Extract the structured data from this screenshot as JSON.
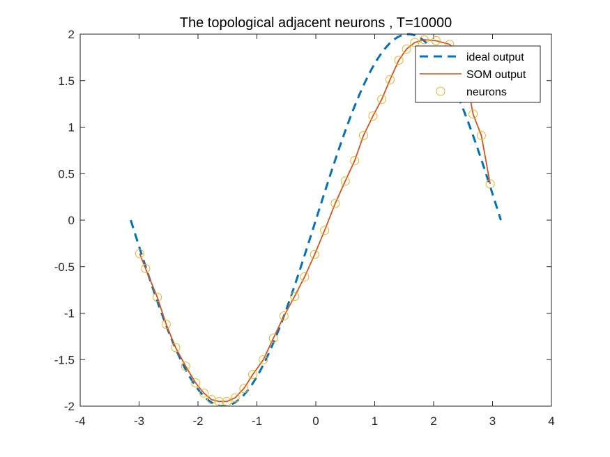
{
  "chart_data": {
    "type": "line",
    "title": "The topological adjacent neurons , T=10000",
    "xlabel": "",
    "ylabel": "",
    "xlim": [
      -4,
      4
    ],
    "ylim": [
      -2,
      2
    ],
    "xticks": [
      -4,
      -3,
      -2,
      -1,
      0,
      1,
      2,
      3,
      4
    ],
    "xtick_labels": [
      "-4",
      "-3",
      "-2",
      "-1",
      "0",
      "1",
      "2",
      "3",
      "4"
    ],
    "yticks": [
      -2,
      -1.5,
      -1,
      -0.5,
      0,
      0.5,
      1,
      1.5,
      2
    ],
    "ytick_labels": [
      "-2",
      "-1.5",
      "-1",
      "-0.5",
      "0",
      "0.5",
      "1",
      "1.5",
      "2"
    ],
    "grid": false,
    "legend_position": "top-right",
    "colors": {
      "ideal": "#0072BD",
      "som": "#D95319",
      "neurons": "#EDB120",
      "axis": "#262626"
    },
    "series": [
      {
        "name": "ideal output",
        "style": "dashed",
        "function": "2*sin(x)",
        "x_range": [
          -3.1416,
          3.1416
        ]
      },
      {
        "name": "SOM output",
        "style": "solid",
        "x": [
          -2.99,
          -2.89,
          -2.69,
          -2.54,
          -2.38,
          -2.21,
          -2.04,
          -1.9,
          -1.77,
          -1.64,
          -1.51,
          -1.37,
          -1.22,
          -1.07,
          -0.89,
          -0.72,
          -0.54,
          -0.36,
          -0.19,
          -0.02,
          0.15,
          0.33,
          0.5,
          0.66,
          0.81,
          0.97,
          1.12,
          1.26,
          1.41,
          1.54,
          1.68,
          1.84,
          2.04,
          2.27,
          2.48,
          2.67,
          2.81,
          2.96
        ],
        "y": [
          -0.36,
          -0.52,
          -0.83,
          -1.12,
          -1.37,
          -1.57,
          -1.75,
          -1.86,
          -1.93,
          -1.95,
          -1.95,
          -1.91,
          -1.81,
          -1.66,
          -1.5,
          -1.27,
          -1.03,
          -0.82,
          -0.61,
          -0.37,
          -0.11,
          0.18,
          0.42,
          0.64,
          0.91,
          1.12,
          1.3,
          1.51,
          1.72,
          1.84,
          1.91,
          1.94,
          1.93,
          1.89,
          1.78,
          1.14,
          0.91,
          0.39
        ]
      },
      {
        "name": "neurons",
        "style": "markers",
        "x": [
          -2.99,
          -2.89,
          -2.69,
          -2.54,
          -2.38,
          -2.21,
          -2.04,
          -1.9,
          -1.77,
          -1.64,
          -1.51,
          -1.37,
          -1.22,
          -1.07,
          -0.89,
          -0.72,
          -0.54,
          -0.36,
          -0.19,
          -0.02,
          0.15,
          0.33,
          0.5,
          0.66,
          0.81,
          0.97,
          1.12,
          1.26,
          1.41,
          1.54,
          1.68,
          1.84,
          2.04,
          2.27,
          2.48,
          2.67,
          2.81,
          2.96
        ],
        "y": [
          -0.36,
          -0.52,
          -0.83,
          -1.12,
          -1.37,
          -1.57,
          -1.75,
          -1.86,
          -1.93,
          -1.95,
          -1.95,
          -1.91,
          -1.81,
          -1.66,
          -1.5,
          -1.27,
          -1.03,
          -0.82,
          -0.61,
          -0.37,
          -0.11,
          0.18,
          0.42,
          0.64,
          0.91,
          1.12,
          1.3,
          1.51,
          1.72,
          1.84,
          1.91,
          1.94,
          1.93,
          1.89,
          1.78,
          1.14,
          0.91,
          0.39
        ]
      }
    ]
  }
}
